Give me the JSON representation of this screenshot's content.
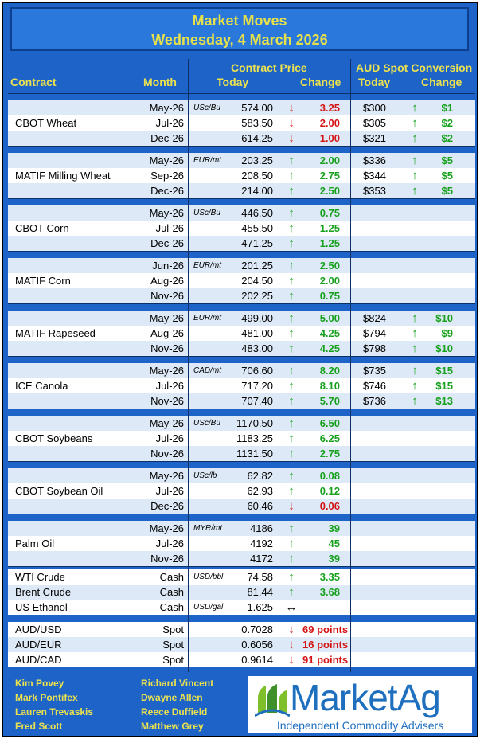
{
  "header": {
    "title": "Market Moves",
    "date": "Wednesday, 4 March 2026",
    "col_contract": "Contract",
    "col_month": "Month",
    "col_contract_price": "Contract Price",
    "col_today": "Today",
    "col_change": "Change",
    "col_aud_spot": "AUD Spot Conversion",
    "col_aud_today": "Today",
    "col_aud_change": "Change"
  },
  "groups": [
    {
      "name": "CBOT Wheat",
      "rows": [
        {
          "month": "May-26",
          "unit": "USc/Bu",
          "price": "574.00",
          "dir": "down",
          "change": "3.25",
          "aud": "$300",
          "adir": "up",
          "achange": "$1"
        },
        {
          "month": "Jul-26",
          "unit": "",
          "price": "583.50",
          "dir": "down",
          "change": "2.00",
          "aud": "$305",
          "adir": "up",
          "achange": "$2"
        },
        {
          "month": "Dec-26",
          "unit": "",
          "price": "614.25",
          "dir": "down",
          "change": "1.00",
          "aud": "$321",
          "adir": "up",
          "achange": "$2"
        }
      ]
    },
    {
      "name": "MATIF Milling Wheat",
      "rows": [
        {
          "month": "May-26",
          "unit": "EUR/mt",
          "price": "203.25",
          "dir": "up",
          "change": "2.00",
          "aud": "$336",
          "adir": "up",
          "achange": "$5"
        },
        {
          "month": "Sep-26",
          "unit": "",
          "price": "208.50",
          "dir": "up",
          "change": "2.75",
          "aud": "$344",
          "adir": "up",
          "achange": "$5"
        },
        {
          "month": "Dec-26",
          "unit": "",
          "price": "214.00",
          "dir": "up",
          "change": "2.50",
          "aud": "$353",
          "adir": "up",
          "achange": "$5"
        }
      ]
    },
    {
      "name": "CBOT Corn",
      "rows": [
        {
          "month": "May-26",
          "unit": "USc/Bu",
          "price": "446.50",
          "dir": "up",
          "change": "0.75",
          "aud": "",
          "adir": "",
          "achange": ""
        },
        {
          "month": "Jul-26",
          "unit": "",
          "price": "455.50",
          "dir": "up",
          "change": "1.25",
          "aud": "",
          "adir": "",
          "achange": ""
        },
        {
          "month": "Dec-26",
          "unit": "",
          "price": "471.25",
          "dir": "up",
          "change": "1.25",
          "aud": "",
          "adir": "",
          "achange": ""
        }
      ]
    },
    {
      "name": "MATIF Corn",
      "rows": [
        {
          "month": "Jun-26",
          "unit": "EUR/mt",
          "price": "201.25",
          "dir": "up",
          "change": "2.50",
          "aud": "",
          "adir": "",
          "achange": ""
        },
        {
          "month": "Aug-26",
          "unit": "",
          "price": "204.50",
          "dir": "up",
          "change": "2.00",
          "aud": "",
          "adir": "",
          "achange": ""
        },
        {
          "month": "Nov-26",
          "unit": "",
          "price": "202.25",
          "dir": "up",
          "change": "0.75",
          "aud": "",
          "adir": "",
          "achange": ""
        }
      ]
    },
    {
      "name": "MATIF Rapeseed",
      "rows": [
        {
          "month": "May-26",
          "unit": "EUR/mt",
          "price": "499.00",
          "dir": "up",
          "change": "5.00",
          "aud": "$824",
          "adir": "up",
          "achange": "$10"
        },
        {
          "month": "Aug-26",
          "unit": "",
          "price": "481.00",
          "dir": "up",
          "change": "4.25",
          "aud": "$794",
          "adir": "up",
          "achange": "$9"
        },
        {
          "month": "Nov-26",
          "unit": "",
          "price": "483.00",
          "dir": "up",
          "change": "4.25",
          "aud": "$798",
          "adir": "up",
          "achange": "$10"
        }
      ]
    },
    {
      "name": "ICE Canola",
      "rows": [
        {
          "month": "May-26",
          "unit": "CAD/mt",
          "price": "706.60",
          "dir": "up",
          "change": "8.20",
          "aud": "$735",
          "adir": "up",
          "achange": "$15"
        },
        {
          "month": "Jul-26",
          "unit": "",
          "price": "717.20",
          "dir": "up",
          "change": "8.10",
          "aud": "$746",
          "adir": "up",
          "achange": "$15"
        },
        {
          "month": "Nov-26",
          "unit": "",
          "price": "707.40",
          "dir": "up",
          "change": "5.70",
          "aud": "$736",
          "adir": "up",
          "achange": "$13"
        }
      ]
    },
    {
      "name": "CBOT Soybeans",
      "rows": [
        {
          "month": "May-26",
          "unit": "USc/Bu",
          "price": "1170.50",
          "dir": "up",
          "change": "6.50",
          "aud": "",
          "adir": "",
          "achange": ""
        },
        {
          "month": "Jul-26",
          "unit": "",
          "price": "1183.25",
          "dir": "up",
          "change": "6.25",
          "aud": "",
          "adir": "",
          "achange": ""
        },
        {
          "month": "Nov-26",
          "unit": "",
          "price": "1131.50",
          "dir": "up",
          "change": "2.75",
          "aud": "",
          "adir": "",
          "achange": ""
        }
      ]
    },
    {
      "name": "CBOT Soybean Oil",
      "rows": [
        {
          "month": "May-26",
          "unit": "USc/lb",
          "price": "62.82",
          "dir": "up",
          "change": "0.08",
          "aud": "",
          "adir": "",
          "achange": ""
        },
        {
          "month": "Jul-26",
          "unit": "",
          "price": "62.93",
          "dir": "up",
          "change": "0.12",
          "aud": "",
          "adir": "",
          "achange": ""
        },
        {
          "month": "Dec-26",
          "unit": "",
          "price": "60.46",
          "dir": "down",
          "change": "0.06",
          "aud": "",
          "adir": "",
          "achange": ""
        }
      ]
    },
    {
      "name": "Palm Oil",
      "rows": [
        {
          "month": "May-26",
          "unit": "MYR/mt",
          "price": "4186",
          "dir": "up",
          "change": "39",
          "aud": "",
          "adir": "",
          "achange": ""
        },
        {
          "month": "Jul-26",
          "unit": "",
          "price": "4192",
          "dir": "up",
          "change": "45",
          "aud": "",
          "adir": "",
          "achange": ""
        },
        {
          "month": "Nov-26",
          "unit": "",
          "price": "4172",
          "dir": "up",
          "change": "39",
          "aud": "",
          "adir": "",
          "achange": ""
        }
      ]
    }
  ],
  "energy": [
    {
      "name": "WTI Crude",
      "month": "Cash",
      "unit": "USD/bbl",
      "price": "74.58",
      "dir": "up",
      "change": "3.35"
    },
    {
      "name": "Brent Crude",
      "month": "Cash",
      "unit": "",
      "price": "81.44",
      "dir": "up",
      "change": "3.68"
    },
    {
      "name": "US Ethanol",
      "month": "Cash",
      "unit": "USD/gal",
      "price": "1.625",
      "dir": "neutral",
      "change": ""
    }
  ],
  "fx": [
    {
      "name": "AUD/USD",
      "month": "Spot",
      "price": "0.7028",
      "dir": "down",
      "change": "69 points"
    },
    {
      "name": "AUD/EUR",
      "month": "Spot",
      "price": "0.6056",
      "dir": "down",
      "change": "16 points"
    },
    {
      "name": "AUD/CAD",
      "month": "Spot",
      "price": "0.9614",
      "dir": "down",
      "change": "91 points"
    }
  ],
  "footer": {
    "contacts_left": [
      "Kim Povey",
      "Mark Pontifex",
      "Lauren Trevaskis",
      "Fred Scott"
    ],
    "contacts_right": [
      "Richard Vincent",
      "Dwayne Allen",
      "Reece Duffield",
      "Matthew Grey"
    ],
    "logo_text": "MarketAg",
    "logo_tagline": "Independent Commodity Advisers"
  },
  "arrows": {
    "up": "↑",
    "down": "↓",
    "neutral": "↔"
  },
  "colors": {
    "background": "#1e64c8",
    "header_text": "#ece24e",
    "up": "#16a01c",
    "down": "#d41414",
    "row_alt": "#dde9f6"
  }
}
